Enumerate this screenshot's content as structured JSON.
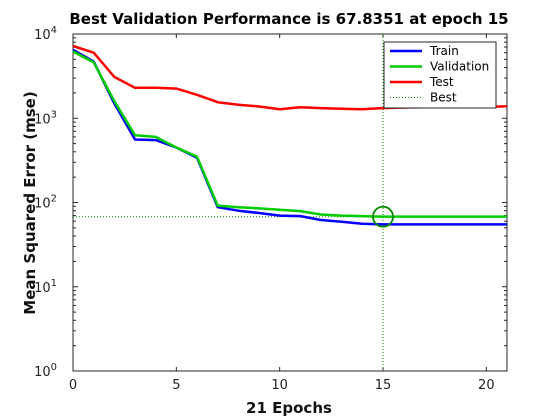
{
  "chart_data": {
    "type": "line",
    "title": "Best Validation Performance is 67.8351 at epoch 15",
    "xlabel": "21 Epochs",
    "ylabel": "Mean Squared Error  (mse)",
    "xlim": [
      0,
      21
    ],
    "ylim": [
      1,
      10000
    ],
    "yscale": "log",
    "grid": false,
    "legend_position": "top-right",
    "x_ticks": [
      "0",
      "5",
      "10",
      "15",
      "20"
    ],
    "y_ticks": [
      {
        "base": "10",
        "exp": "0"
      },
      {
        "base": "10",
        "exp": "1"
      },
      {
        "base": "10",
        "exp": "2"
      },
      {
        "base": "10",
        "exp": "3"
      },
      {
        "base": "10",
        "exp": "4"
      }
    ],
    "x": [
      0,
      1,
      2,
      3,
      4,
      5,
      6,
      7,
      8,
      9,
      10,
      11,
      12,
      13,
      14,
      15,
      16,
      17,
      18,
      19,
      20,
      21
    ],
    "series": [
      {
        "name": "Train",
        "color": "#0000ff",
        "values": [
          6500,
          4700,
          1500,
          560,
          550,
          450,
          340,
          88,
          80,
          75,
          70,
          69,
          62,
          59,
          56,
          55,
          55,
          55,
          55,
          55,
          55,
          55
        ]
      },
      {
        "name": "Validation",
        "color": "#00cc00",
        "values": [
          6200,
          4600,
          1600,
          630,
          600,
          450,
          350,
          92,
          88,
          85,
          82,
          79,
          72,
          70,
          69,
          68,
          68,
          68,
          68,
          68,
          68,
          68
        ]
      },
      {
        "name": "Test",
        "color": "#ff0000",
        "values": [
          7200,
          6000,
          3100,
          2300,
          2300,
          2250,
          1900,
          1550,
          1450,
          1380,
          1280,
          1350,
          1320,
          1300,
          1280,
          1320,
          1340,
          1350,
          1360,
          1360,
          1360,
          1390
        ]
      }
    ],
    "best": {
      "name": "Best",
      "epoch": 15,
      "value": 67.8351,
      "color": "#008800"
    }
  }
}
